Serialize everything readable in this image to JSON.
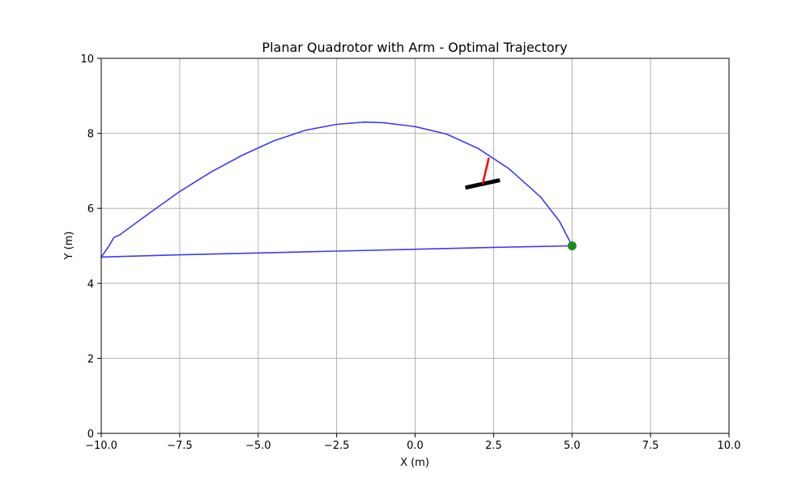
{
  "chart_data": {
    "type": "line",
    "title": "Planar Quadrotor with Arm - Optimal Trajectory",
    "xlabel": "X (m)",
    "ylabel": "Y (m)",
    "xlim": [
      -10,
      10
    ],
    "ylim": [
      0,
      10
    ],
    "x_ticks": [
      -10,
      -7.5,
      -5,
      -2.5,
      0,
      2.5,
      5,
      7.5,
      10
    ],
    "x_tick_labels": [
      "−10.0",
      "−7.5",
      "−5.0",
      "−2.5",
      "0.0",
      "2.5",
      "5.0",
      "7.5",
      "10.0"
    ],
    "y_ticks": [
      0,
      2,
      4,
      6,
      8,
      10
    ],
    "y_tick_labels": [
      "0",
      "2",
      "4",
      "6",
      "8",
      "10"
    ],
    "grid": true,
    "series": [
      {
        "kind": "trajectory",
        "color": "#3b3bf5",
        "x": [
          5.0,
          4.6,
          4.0,
          3.0,
          2.0,
          1.0,
          0.0,
          -1.0,
          -1.6,
          -2.5,
          -3.5,
          -4.5,
          -5.5,
          -6.5,
          -7.5,
          -8.5,
          -9.4,
          -9.6,
          -9.75,
          -10.0,
          -7.5,
          -5.0,
          -2.5,
          0.0,
          2.5,
          5.0
        ],
        "y": [
          5.0,
          5.65,
          6.3,
          7.05,
          7.6,
          7.98,
          8.18,
          8.28,
          8.3,
          8.24,
          8.08,
          7.8,
          7.42,
          6.97,
          6.45,
          5.85,
          5.3,
          5.22,
          5.0,
          4.7,
          4.76,
          4.81,
          4.86,
          4.91,
          4.96,
          5.0
        ]
      }
    ],
    "markers": [
      {
        "kind": "goal-point",
        "color": "#1a8c1a",
        "x": 5.0,
        "y": 5.0
      }
    ],
    "quadrotor": {
      "body_color": "#000000",
      "arm_color": "#ff0000",
      "body": {
        "x1": 1.6,
        "y1": 6.55,
        "x2": 2.7,
        "y2": 6.75
      },
      "arm": {
        "x1": 2.15,
        "y1": 6.65,
        "x2": 2.35,
        "y2": 7.35
      }
    }
  }
}
